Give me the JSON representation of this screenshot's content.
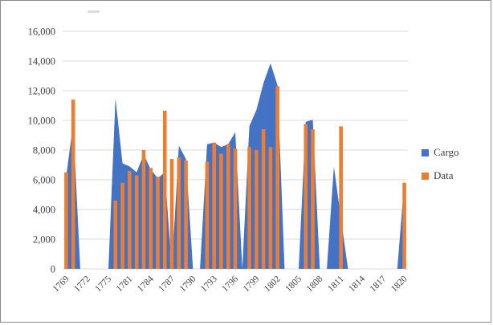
{
  "window": {
    "background": "#ffffff",
    "frame_border_color": "#8a8a8a"
  },
  "chart_data": {
    "type": "combo-area-bar",
    "title": "",
    "xlabel": "",
    "ylabel": "",
    "ylim": [
      0,
      16000
    ],
    "y_tick_step": 2000,
    "grid": true,
    "gridline_color": "#d9d9d9",
    "axis_text_color": "#404040",
    "legend_position": "right",
    "x_label_interval": 3,
    "y_ticks": [
      "0",
      "2,000",
      "4,000",
      "6,000",
      "8,000",
      "10,000",
      "12,000",
      "14,000",
      "16,000"
    ],
    "x_tick_labels": [
      "1769",
      "1772",
      "1775",
      "1781",
      "1784",
      "1787",
      "1790",
      "1793",
      "1796",
      "1799",
      "1802",
      "1805",
      "1808",
      "1811",
      "1814",
      "1817",
      "1820"
    ],
    "categories": [
      "1769",
      "1770",
      "1771",
      "1772",
      "1773",
      "1774",
      "1775",
      "1776",
      "1780",
      "1781",
      "1782",
      "1783",
      "1784",
      "1785",
      "1786",
      "1787",
      "1788",
      "1789",
      "1790",
      "1791",
      "1792",
      "1793",
      "1794",
      "1795",
      "1796",
      "1797",
      "1798",
      "1799",
      "1800",
      "1801",
      "1802",
      "1803",
      "1804",
      "1805",
      "1806",
      "1807",
      "1808",
      "1809",
      "1810",
      "1811",
      "1812",
      "1813",
      "1814",
      "1815",
      "1816",
      "1817",
      "1818",
      "1819",
      "1820"
    ],
    "series": [
      {
        "name": "Cargo",
        "type": "area",
        "color": "#4472C4",
        "values": [
          6200,
          9800,
          0,
          0,
          0,
          0,
          0,
          11500,
          7100,
          6900,
          6500,
          7700,
          6700,
          6100,
          6500,
          0,
          8300,
          7400,
          0,
          0,
          8400,
          8500,
          8200,
          8400,
          9200,
          0,
          9600,
          10700,
          12500,
          13850,
          12350,
          0,
          0,
          0,
          9900,
          10050,
          0,
          0,
          6900,
          3400,
          0,
          0,
          0,
          0,
          0,
          0,
          0,
          0,
          5900
        ]
      },
      {
        "name": "Data",
        "type": "bar",
        "color": "#ED7D31",
        "values": [
          6500,
          11400,
          0,
          0,
          0,
          0,
          0,
          4600,
          5800,
          6600,
          6300,
          8000,
          6800,
          6200,
          10650,
          7400,
          7500,
          7300,
          0,
          0,
          7200,
          8500,
          7750,
          8400,
          8100,
          0,
          8200,
          8000,
          9400,
          8200,
          12300,
          0,
          0,
          0,
          9750,
          9400,
          0,
          0,
          0,
          9600,
          0,
          0,
          0,
          0,
          0,
          0,
          0,
          0,
          5800
        ]
      }
    ]
  },
  "legend": {
    "items": [
      {
        "label": "Cargo",
        "color": "#4472C4"
      },
      {
        "label": "Data",
        "color": "#ED7D31"
      }
    ]
  }
}
